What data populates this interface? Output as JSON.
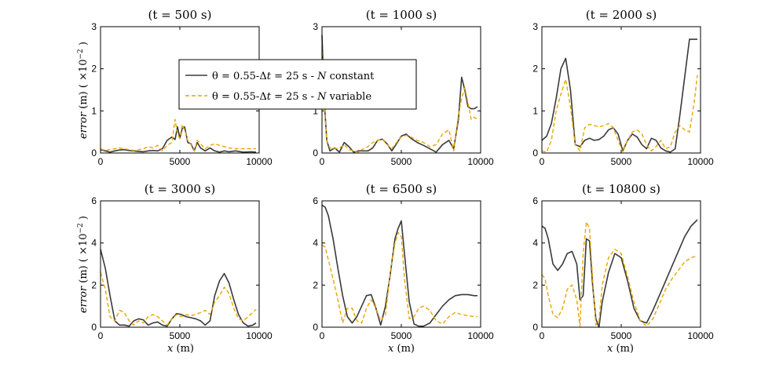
{
  "figure": {
    "xlabel_var": "x",
    "xlabel_unit": " (m)",
    "ylabel_var": "error",
    "ylabel_unit": " (m) ( ×10",
    "ylabel_exp": "−2",
    "ylabel_close": " )"
  },
  "legend": {
    "location": "top-center of first panel",
    "entries": [
      {
        "prefix": "θ = 0.55-Δ",
        "var1": "t",
        "mid": " = 25 s - ",
        "var2": "N",
        "suffix": " constant",
        "color": "#3a3a3a",
        "style": "solid"
      },
      {
        "prefix": "θ = 0.55-Δ",
        "var1": "t",
        "mid": " = 25 s - ",
        "var2": "N",
        "suffix": " variable",
        "color": "#e8a600",
        "style": "dashed"
      }
    ]
  },
  "chart_data": [
    {
      "type": "line",
      "title": "(t = 500 s)",
      "xlim": [
        0,
        10000
      ],
      "ylim": [
        0,
        3
      ],
      "xticks": [
        0,
        5000,
        10000
      ],
      "yticks": [
        0,
        1,
        2,
        3
      ],
      "series": [
        {
          "name": "N constant",
          "x": [
            0,
            300,
            600,
            900,
            1200,
            1500,
            1800,
            2100,
            2400,
            2700,
            3000,
            3300,
            3600,
            3900,
            4200,
            4500,
            4700,
            4850,
            5000,
            5150,
            5300,
            5500,
            5700,
            5900,
            6100,
            6300,
            6600,
            6900,
            7200,
            7500,
            7800,
            8100,
            8500,
            9000,
            9500,
            9800
          ],
          "y": [
            0.08,
            0.05,
            0.02,
            0.05,
            0.07,
            0.08,
            0.06,
            0.05,
            0.04,
            0.03,
            0.05,
            0.06,
            0.05,
            0.1,
            0.3,
            0.38,
            0.32,
            0.62,
            0.35,
            0.58,
            0.62,
            0.25,
            0.22,
            0.05,
            0.25,
            0.12,
            0.05,
            0.12,
            0.05,
            0.02,
            0.05,
            0.03,
            0.05,
            0.02,
            0.03,
            0.02
          ]
        },
        {
          "name": "N variable",
          "x": [
            0,
            300,
            600,
            900,
            1200,
            1500,
            1800,
            2100,
            2400,
            2700,
            3000,
            3300,
            3600,
            3900,
            4200,
            4500,
            4700,
            4850,
            5000,
            5150,
            5300,
            5500,
            5700,
            5900,
            6100,
            6300,
            6600,
            6900,
            7200,
            7500,
            7800,
            8100,
            8500,
            9000,
            9500,
            9800
          ],
          "y": [
            0.1,
            0.06,
            0.08,
            0.1,
            0.12,
            0.1,
            0.08,
            0.06,
            0.08,
            0.1,
            0.15,
            0.12,
            0.18,
            0.05,
            0.18,
            0.25,
            0.8,
            0.45,
            0.35,
            0.68,
            0.55,
            0.3,
            0.2,
            0.05,
            0.3,
            0.22,
            0.1,
            0.18,
            0.22,
            0.18,
            0.15,
            0.12,
            0.1,
            0.1,
            0.1,
            0.1
          ]
        }
      ]
    },
    {
      "type": "line",
      "title": "(t = 1000 s)",
      "xlim": [
        0,
        10000
      ],
      "ylim": [
        0,
        3
      ],
      "xticks": [
        0,
        5000,
        10000
      ],
      "yticks": [
        0,
        1,
        2,
        3
      ],
      "series": [
        {
          "name": "N constant",
          "x": [
            0,
            150,
            300,
            500,
            800,
            1100,
            1400,
            1700,
            2000,
            2300,
            2600,
            2900,
            3200,
            3500,
            3800,
            4100,
            4400,
            4700,
            5000,
            5300,
            5600,
            6000,
            6400,
            6800,
            7200,
            7600,
            8000,
            8300,
            8600,
            8800,
            9000,
            9200,
            9400,
            9600,
            9800
          ],
          "y": [
            2.8,
            1.2,
            0.3,
            0.05,
            0.12,
            0.02,
            0.25,
            0.15,
            0.02,
            0.05,
            0.05,
            0.05,
            0.12,
            0.3,
            0.33,
            0.22,
            0.05,
            0.22,
            0.4,
            0.45,
            0.35,
            0.25,
            0.18,
            0.1,
            0.02,
            0.2,
            0.3,
            0.1,
            0.8,
            1.8,
            1.5,
            1.1,
            1.05,
            1.05,
            1.1
          ]
        },
        {
          "name": "N variable",
          "x": [
            0,
            150,
            300,
            500,
            800,
            1100,
            1400,
            1700,
            2000,
            2300,
            2600,
            2900,
            3200,
            3500,
            3800,
            4100,
            4400,
            4700,
            5000,
            5300,
            5600,
            6000,
            6400,
            6800,
            7200,
            7600,
            8000,
            8300,
            8600,
            8800,
            9000,
            9200,
            9400,
            9600,
            9800
          ],
          "y": [
            2.4,
            1.1,
            0.3,
            0.12,
            0.1,
            0.12,
            0.2,
            0.08,
            0.05,
            0.02,
            0.1,
            0.15,
            0.25,
            0.3,
            0.33,
            0.2,
            0.1,
            0.25,
            0.38,
            0.42,
            0.38,
            0.3,
            0.25,
            0.15,
            0.2,
            0.45,
            0.55,
            0.05,
            0.9,
            1.3,
            1.55,
            1.2,
            0.8,
            0.85,
            0.8
          ]
        }
      ]
    },
    {
      "type": "line",
      "title": "(t = 2000 s)",
      "xlim": [
        0,
        10000
      ],
      "ylim": [
        0,
        3
      ],
      "xticks": [
        0,
        5000,
        10000
      ],
      "yticks": [
        0,
        1,
        2,
        3
      ],
      "series": [
        {
          "name": "N constant",
          "x": [
            0,
            300,
            600,
            900,
            1200,
            1500,
            1800,
            2100,
            2400,
            2700,
            3000,
            3300,
            3600,
            3900,
            4200,
            4500,
            4800,
            5100,
            5400,
            5700,
            6000,
            6300,
            6600,
            6900,
            7200,
            7500,
            7800,
            8100,
            8400,
            8700,
            9000,
            9300,
            9600,
            9800
          ],
          "y": [
            0.3,
            0.4,
            0.7,
            1.3,
            2.0,
            2.25,
            1.5,
            0.2,
            0.15,
            0.3,
            0.35,
            0.3,
            0.32,
            0.4,
            0.55,
            0.6,
            0.45,
            0.05,
            0.3,
            0.45,
            0.38,
            0.2,
            0.1,
            0.35,
            0.3,
            0.12,
            0.05,
            0.02,
            0.1,
            0.9,
            1.8,
            2.7,
            2.7,
            2.7
          ]
        },
        {
          "name": "N variable",
          "x": [
            0,
            300,
            600,
            900,
            1200,
            1500,
            1800,
            2100,
            2400,
            2700,
            3000,
            3300,
            3600,
            3900,
            4200,
            4500,
            4800,
            5100,
            5400,
            5700,
            6000,
            6300,
            6600,
            6900,
            7200,
            7500,
            7800,
            8100,
            8400,
            8700,
            9000,
            9300,
            9600,
            9800
          ],
          "y": [
            0.05,
            0.02,
            0.3,
            1.0,
            1.4,
            1.75,
            1.1,
            0.2,
            0.05,
            0.6,
            0.68,
            0.65,
            0.62,
            0.65,
            0.7,
            0.6,
            0.3,
            0.02,
            0.3,
            0.5,
            0.55,
            0.45,
            0.2,
            0.05,
            0.15,
            0.3,
            0.1,
            0.15,
            0.5,
            0.65,
            0.55,
            0.5,
            1.2,
            1.85
          ]
        }
      ]
    },
    {
      "type": "line",
      "title": "(t = 3000 s)",
      "xlim": [
        0,
        10000
      ],
      "ylim": [
        0,
        6
      ],
      "xticks": [
        0,
        5000,
        10000
      ],
      "yticks": [
        0,
        2,
        4,
        6
      ],
      "series": [
        {
          "name": "N constant",
          "x": [
            0,
            300,
            600,
            900,
            1200,
            1500,
            1800,
            2100,
            2400,
            2700,
            3000,
            3300,
            3600,
            3900,
            4200,
            4500,
            4800,
            5100,
            5400,
            5700,
            6000,
            6300,
            6600,
            6900,
            7200,
            7500,
            7800,
            8100,
            8400,
            8700,
            9000,
            9300,
            9600,
            9800
          ],
          "y": [
            3.7,
            2.8,
            1.5,
            0.3,
            0.1,
            0.1,
            0.05,
            0.3,
            0.4,
            0.35,
            0.1,
            0.2,
            0.25,
            0.1,
            0.05,
            0.4,
            0.65,
            0.6,
            0.5,
            0.45,
            0.4,
            0.3,
            0.1,
            0.3,
            1.5,
            2.2,
            2.55,
            2.1,
            1.3,
            0.6,
            0.2,
            0.05,
            0.1,
            0.2
          ]
        },
        {
          "name": "N variable",
          "x": [
            0,
            300,
            600,
            900,
            1200,
            1500,
            1800,
            2100,
            2400,
            2700,
            3000,
            3300,
            3600,
            3900,
            4200,
            4500,
            4800,
            5100,
            5400,
            5700,
            6000,
            6300,
            6600,
            6900,
            7200,
            7500,
            7800,
            8100,
            8400,
            8700,
            9000,
            9300,
            9600,
            9800
          ],
          "y": [
            2.6,
            1.8,
            0.5,
            0.3,
            0.8,
            0.7,
            0.3,
            0.1,
            0.3,
            0.2,
            0.5,
            0.6,
            0.5,
            0.3,
            0.1,
            0.4,
            0.6,
            0.5,
            0.6,
            0.55,
            0.6,
            0.7,
            0.8,
            0.6,
            1.2,
            1.5,
            1.9,
            1.6,
            0.9,
            0.4,
            0.3,
            0.5,
            0.7,
            0.85
          ]
        }
      ]
    },
    {
      "type": "line",
      "title": "(t = 6500 s)",
      "xlim": [
        0,
        10000
      ],
      "ylim": [
        0,
        6
      ],
      "xticks": [
        0,
        5000,
        10000
      ],
      "yticks": [
        0,
        2,
        4,
        6
      ],
      "series": [
        {
          "name": "N constant",
          "x": [
            0,
            200,
            400,
            700,
            1000,
            1300,
            1600,
            1900,
            2200,
            2500,
            2800,
            3100,
            3400,
            3700,
            4000,
            4300,
            4600,
            4800,
            5000,
            5200,
            5500,
            5800,
            6100,
            6400,
            6800,
            7200,
            7600,
            8000,
            8400,
            8800,
            9200,
            9600,
            9800
          ],
          "y": [
            5.8,
            5.7,
            5.3,
            4.2,
            2.8,
            1.5,
            0.5,
            0.2,
            0.5,
            1.0,
            1.5,
            1.55,
            0.9,
            0.1,
            1.0,
            2.5,
            4.2,
            4.7,
            5.05,
            3.5,
            1.2,
            0.15,
            0.05,
            0.05,
            0.2,
            0.6,
            1.0,
            1.3,
            1.5,
            1.55,
            1.55,
            1.5,
            1.5
          ]
        },
        {
          "name": "N variable",
          "x": [
            0,
            200,
            400,
            700,
            1000,
            1300,
            1600,
            1900,
            2200,
            2500,
            2800,
            3100,
            3400,
            3700,
            4000,
            4300,
            4600,
            4800,
            5000,
            5200,
            5500,
            5800,
            6100,
            6400,
            6800,
            7200,
            7600,
            8000,
            8400,
            8800,
            9200,
            9600,
            9800
          ],
          "y": [
            3.9,
            3.8,
            3.2,
            2.3,
            1.3,
            0.2,
            0.9,
            0.9,
            0.3,
            0.2,
            0.9,
            1.3,
            0.9,
            0.3,
            0.6,
            2.6,
            4.0,
            4.5,
            4.3,
            2.3,
            0.4,
            0.5,
            0.9,
            1.0,
            0.8,
            0.3,
            0.15,
            0.5,
            0.7,
            0.6,
            0.55,
            0.5,
            0.5
          ]
        }
      ]
    },
    {
      "type": "line",
      "title": "(t = 10800 s)",
      "xlim": [
        0,
        10000
      ],
      "ylim": [
        0,
        6
      ],
      "xticks": [
        0,
        5000,
        10000
      ],
      "yticks": [
        0,
        2,
        4,
        6
      ],
      "series": [
        {
          "name": "N constant",
          "x": [
            0,
            200,
            400,
            700,
            1000,
            1300,
            1600,
            1900,
            2200,
            2400,
            2600,
            2800,
            3000,
            3200,
            3400,
            3600,
            3800,
            4200,
            4600,
            5000,
            5400,
            5800,
            6200,
            6600,
            7000,
            7400,
            7800,
            8200,
            8600,
            9000,
            9400,
            9800
          ],
          "y": [
            4.8,
            4.7,
            4.2,
            3.0,
            2.7,
            3.0,
            3.5,
            3.6,
            3.0,
            1.3,
            1.5,
            4.2,
            4.1,
            2.0,
            0.4,
            0.0,
            1.2,
            2.6,
            3.5,
            3.3,
            2.2,
            0.9,
            0.3,
            0.2,
            0.8,
            1.5,
            2.2,
            2.9,
            3.6,
            4.3,
            4.8,
            5.1
          ]
        },
        {
          "name": "N variable",
          "x": [
            0,
            200,
            400,
            700,
            1000,
            1300,
            1600,
            1900,
            2200,
            2400,
            2600,
            2800,
            3000,
            3200,
            3400,
            3600,
            3800,
            4200,
            4600,
            5000,
            5400,
            5800,
            6200,
            6600,
            7000,
            7400,
            7800,
            8200,
            8600,
            9000,
            9400,
            9800
          ],
          "y": [
            2.5,
            2.3,
            1.5,
            0.6,
            0.45,
            0.9,
            1.8,
            2.0,
            1.3,
            0.05,
            3.5,
            5.0,
            4.7,
            2.3,
            0.1,
            0.3,
            2.0,
            3.3,
            3.7,
            3.5,
            2.4,
            1.2,
            0.3,
            0.05,
            0.4,
            1.1,
            1.8,
            2.3,
            2.7,
            3.1,
            3.3,
            3.4
          ]
        }
      ]
    }
  ]
}
